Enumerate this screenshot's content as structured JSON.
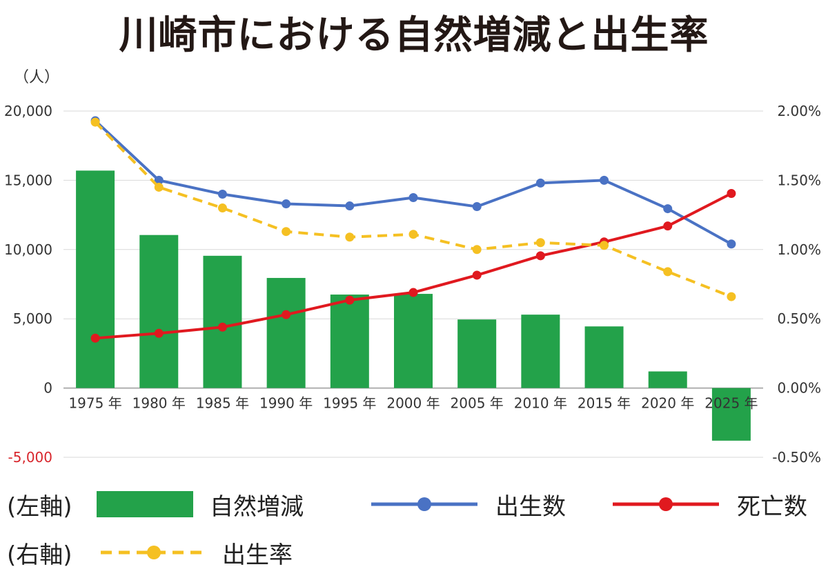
{
  "title": "川崎市における自然増減と出生率",
  "unit_label": "（人）",
  "legend": {
    "left_axis_tag": "(左軸)",
    "right_axis_tag": "(右軸)",
    "natural_change": "自然増減",
    "births": "出生数",
    "deaths": "死亡数",
    "birth_rate": "出生率"
  },
  "colors": {
    "natural_change": "#23a24a",
    "births": "#4a72c4",
    "deaths": "#e0191f",
    "birth_rate": "#f5c022",
    "negative_tick": "#d8262c",
    "grid": "#d9d9d9"
  },
  "chart_data": {
    "type": "bar",
    "title": "川崎市における自然増減と出生率",
    "categories": [
      "1975 年",
      "1980 年",
      "1985 年",
      "1990 年",
      "1995 年",
      "2000 年",
      "2005 年",
      "2010 年",
      "2015 年",
      "2020 年",
      "2025 年"
    ],
    "y_left": {
      "label": "（人）",
      "ylim": [
        -5000,
        20000
      ],
      "ticks": [
        -5000,
        0,
        5000,
        10000,
        15000,
        20000
      ],
      "tick_labels": [
        "-5,000",
        "0",
        "5,000",
        "10,000",
        "15,000",
        "20,000"
      ]
    },
    "y_right": {
      "ylim": [
        -0.5,
        2.0
      ],
      "ticks": [
        -0.5,
        0,
        0.5,
        1.0,
        1.5,
        2.0
      ],
      "tick_labels": [
        "-0.50%",
        "0.00%",
        "0.50%",
        "1.00%",
        "1.50%",
        "2.00%"
      ]
    },
    "series": [
      {
        "name": "自然増減",
        "type": "bar",
        "axis": "left",
        "values": [
          15700,
          11050,
          9550,
          7950,
          6750,
          6800,
          4950,
          5300,
          4450,
          1200,
          -3800
        ]
      },
      {
        "name": "出生数",
        "type": "line",
        "axis": "left",
        "values": [
          19300,
          15000,
          14000,
          13300,
          13150,
          13750,
          13100,
          14800,
          15000,
          12950,
          10400
        ]
      },
      {
        "name": "死亡数",
        "type": "line",
        "axis": "left",
        "values": [
          3600,
          3950,
          4400,
          5300,
          6350,
          6900,
          8150,
          9550,
          10550,
          11700,
          14050
        ]
      },
      {
        "name": "出生率",
        "type": "line",
        "axis": "right",
        "dashed": true,
        "values": [
          1.92,
          1.45,
          1.3,
          1.13,
          1.09,
          1.11,
          1.0,
          1.05,
          1.03,
          0.84,
          0.66
        ]
      }
    ],
    "grid": true,
    "legend_position": "bottom"
  }
}
